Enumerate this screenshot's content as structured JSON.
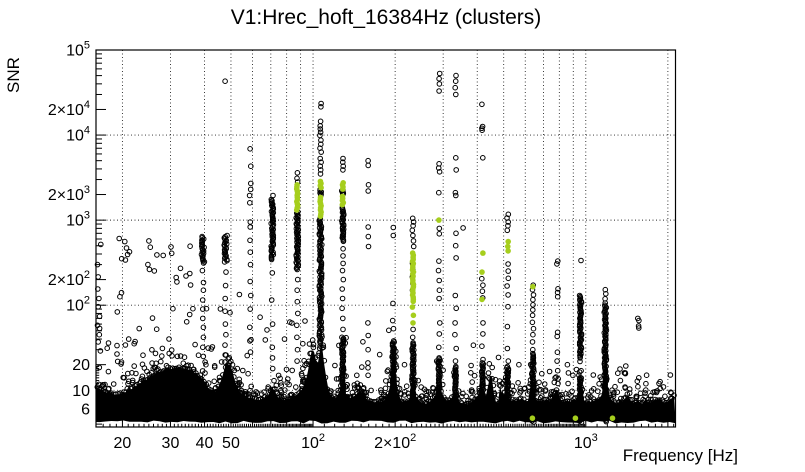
{
  "chart_data": {
    "type": "scatter",
    "title": "V1:Hrec_hoft_16384Hz (clusters)",
    "xlabel": "Frequency [Hz]",
    "ylabel": "SNR",
    "x_scale": "log",
    "y_scale": "log",
    "xlim": [
      16,
      2133
    ],
    "ylim": [
      3.7,
      100000
    ],
    "grid": {
      "x": [
        20,
        30,
        40,
        50,
        60,
        70,
        80,
        90,
        100,
        200,
        300,
        400,
        500,
        600,
        700,
        800,
        900,
        1000,
        2000
      ],
      "y": [
        10,
        100,
        1000,
        10000,
        100000
      ]
    },
    "x_ticks": [
      {
        "value": 20,
        "text": "20",
        "sup": ""
      },
      {
        "value": 30,
        "text": "30",
        "sup": ""
      },
      {
        "value": 40,
        "text": "40",
        "sup": ""
      },
      {
        "value": 50,
        "text": "50",
        "sup": ""
      },
      {
        "value": 100,
        "text": "10",
        "sup": "2"
      },
      {
        "value": 200,
        "text": "2×10",
        "sup": "2"
      },
      {
        "value": 1000,
        "text": "10",
        "sup": "3"
      }
    ],
    "y_ticks": [
      {
        "value": 100000,
        "text": "10",
        "sup": "5"
      },
      {
        "value": 20000,
        "text": "2×10",
        "sup": "4"
      },
      {
        "value": 10000,
        "text": "10",
        "sup": "4"
      },
      {
        "value": 2000,
        "text": "2×10",
        "sup": "3"
      },
      {
        "value": 1000,
        "text": "10",
        "sup": "3"
      },
      {
        "value": 200,
        "text": "2×10",
        "sup": "2"
      },
      {
        "value": 100,
        "text": "10",
        "sup": "2"
      },
      {
        "value": 20,
        "text": "20",
        "sup": ""
      },
      {
        "value": 10,
        "text": "10",
        "sup": ""
      },
      {
        "value": 6,
        "text": "6",
        "sup": ""
      }
    ],
    "marker": {
      "open_color": "#000000",
      "green_color": "#a6ce1d",
      "open_radius": 2.3,
      "green_radius": 2.8
    },
    "noise_floor": [
      [
        16,
        11
      ],
      [
        17.5,
        9.6
      ],
      [
        19,
        9
      ],
      [
        20.5,
        9.4
      ],
      [
        22,
        11
      ],
      [
        24,
        13
      ],
      [
        26,
        15
      ],
      [
        28,
        16.8
      ],
      [
        30,
        18
      ],
      [
        32,
        18.6
      ],
      [
        34,
        18.2
      ],
      [
        36,
        17
      ],
      [
        38,
        15
      ],
      [
        40,
        12.5
      ],
      [
        42,
        10
      ],
      [
        44,
        9.6
      ],
      [
        46,
        13
      ],
      [
        48,
        21
      ],
      [
        50,
        19
      ],
      [
        52,
        12
      ],
      [
        54,
        9.2
      ],
      [
        57,
        8.4
      ],
      [
        60,
        8
      ],
      [
        64,
        7.8
      ],
      [
        68,
        8.4
      ],
      [
        71,
        11
      ],
      [
        74,
        8.6
      ],
      [
        78,
        7.8
      ],
      [
        83,
        8.2
      ],
      [
        88,
        9
      ],
      [
        92,
        11
      ],
      [
        95,
        14
      ],
      [
        98,
        27
      ],
      [
        100,
        33
      ],
      [
        102,
        24
      ],
      [
        104,
        20
      ],
      [
        106,
        29
      ],
      [
        108,
        34
      ],
      [
        110,
        19
      ],
      [
        113,
        11
      ],
      [
        117,
        8.6
      ],
      [
        122,
        8.2
      ],
      [
        126,
        10
      ],
      [
        129,
        16
      ],
      [
        132,
        9
      ],
      [
        137,
        8.2
      ],
      [
        143,
        8.8
      ],
      [
        148,
        10
      ],
      [
        154,
        8.4
      ],
      [
        160,
        7.6
      ],
      [
        168,
        7.2
      ],
      [
        176,
        7.2
      ],
      [
        184,
        7.6
      ],
      [
        191,
        10
      ],
      [
        195,
        21
      ],
      [
        197,
        35
      ],
      [
        200,
        20
      ],
      [
        204,
        9
      ],
      [
        212,
        7.4
      ],
      [
        222,
        7.4
      ],
      [
        229,
        9
      ],
      [
        233,
        25
      ],
      [
        237,
        9
      ],
      [
        247,
        7.2
      ],
      [
        258,
        7
      ],
      [
        270,
        7.6
      ],
      [
        281,
        8.4
      ],
      [
        290,
        11
      ],
      [
        298,
        9
      ],
      [
        308,
        7.4
      ],
      [
        320,
        8
      ],
      [
        332,
        9.4
      ],
      [
        345,
        7.4
      ],
      [
        360,
        6.8
      ],
      [
        378,
        7
      ],
      [
        396,
        8.2
      ],
      [
        410,
        9.4
      ],
      [
        419,
        11
      ],
      [
        430,
        8.2
      ],
      [
        441,
        13
      ],
      [
        450,
        16
      ],
      [
        463,
        7.6
      ],
      [
        477,
        7.2
      ],
      [
        487,
        12
      ],
      [
        498,
        7.4
      ],
      [
        509,
        13
      ],
      [
        519,
        8.6
      ],
      [
        530,
        7.6
      ],
      [
        543,
        7.8
      ],
      [
        557,
        7.4
      ],
      [
        571,
        7.8
      ],
      [
        586,
        8.2
      ],
      [
        601,
        7.2
      ],
      [
        616,
        7.6
      ],
      [
        629,
        12
      ],
      [
        638,
        19
      ],
      [
        648,
        8.2
      ],
      [
        662,
        7.2
      ],
      [
        680,
        7.6
      ],
      [
        702,
        7.3
      ],
      [
        722,
        8
      ],
      [
        744,
        7.2
      ],
      [
        764,
        9
      ],
      [
        787,
        10.6
      ],
      [
        805,
        8
      ],
      [
        828,
        7.2
      ],
      [
        852,
        7.7
      ],
      [
        878,
        7.3
      ],
      [
        903,
        8
      ],
      [
        930,
        7.2
      ],
      [
        957,
        15
      ],
      [
        980,
        8
      ],
      [
        1005,
        7.2
      ],
      [
        1035,
        7.5
      ],
      [
        1062,
        7.1
      ],
      [
        1092,
        7.7
      ],
      [
        1122,
        8
      ],
      [
        1152,
        9
      ],
      [
        1180,
        30
      ],
      [
        1212,
        8.6
      ],
      [
        1252,
        7.4
      ],
      [
        1300,
        7.1
      ],
      [
        1360,
        7.6
      ],
      [
        1425,
        8.4
      ],
      [
        1485,
        7.1
      ],
      [
        1545,
        7.5
      ],
      [
        1605,
        7.1
      ],
      [
        1668,
        7.5
      ],
      [
        1725,
        7.1
      ],
      [
        1792,
        7.7
      ],
      [
        1862,
        8
      ],
      [
        1932,
        7.2
      ],
      [
        2000,
        7.5
      ],
      [
        2065,
        8
      ],
      [
        2130,
        8.8
      ]
    ],
    "clusters": [
      {
        "f": 39.5,
        "w": 1.6,
        "dense": [
          [
            310,
            640
          ]
        ],
        "open": [
          255,
          185,
          150,
          115,
          90,
          70,
          55,
          42,
          32,
          25
        ]
      },
      {
        "f": 47.8,
        "w": 1.6,
        "dense": [
          [
            320,
            660
          ]
        ],
        "open": [
          43000,
          245,
          170,
          120,
          85,
          60,
          45,
          34,
          26
        ]
      },
      {
        "f": 58.8,
        "open": [
          6900,
          4300,
          2700,
          2300,
          1950,
          1600,
          950,
          830,
          580,
          420,
          300,
          190,
          130,
          90,
          55,
          38
        ]
      },
      {
        "f": 70.9,
        "w": 1.1,
        "dense": [
          [
            340,
            1750
          ]
        ],
        "open": [
          1950,
          240,
          115,
          60,
          32,
          24
        ]
      },
      {
        "f": 87.5,
        "w": 1.1,
        "dense": [
          [
            260,
            1250
          ]
        ],
        "green_dense": [
          [
            1300,
            2600
          ]
        ],
        "open": [
          3600,
          3100,
          2800,
          200,
          150,
          110,
          80,
          58,
          42,
          30,
          22
        ]
      },
      {
        "f": 106.5,
        "w": 1.3,
        "dense": [
          [
            35,
            1050
          ],
          [
            1900,
            2300
          ]
        ],
        "green_dense": [
          [
            2350,
            2850
          ],
          [
            1100,
            1850
          ]
        ],
        "open": [
          23500,
          21500,
          14500,
          12800,
          11800,
          10800,
          9900,
          8700,
          7800,
          7000,
          6300,
          5300,
          4800,
          4300,
          3900,
          3500
        ]
      },
      {
        "f": 128.5,
        "w": 1.0,
        "dense": [
          [
            1950,
            2280
          ],
          [
            560,
            1400
          ],
          [
            8,
            42
          ]
        ],
        "green_dense": [
          [
            2300,
            2750
          ],
          [
            1450,
            1900
          ]
        ],
        "open": [
          5300,
          4800,
          4300,
          3900,
          2100,
          460,
          380,
          310,
          255,
          200,
          155,
          120,
          92,
          70,
          52,
          38,
          28
        ]
      },
      {
        "f": 159,
        "open": [
          5000,
          4400,
          2600,
          2200,
          830,
          640,
          490,
          62,
          44,
          30,
          21,
          15
        ]
      },
      {
        "f": 197,
        "w": 1.0,
        "dense": [
          [
            8,
            38
          ]
        ],
        "open": [
          820,
          660,
          105,
          66,
          53,
          30,
          24,
          18
        ]
      },
      {
        "f": 232.5,
        "w": 1.0,
        "dense": [
          [
            7,
            36
          ]
        ],
        "green_dense": [
          [
            105,
            410
          ]
        ],
        "green": [
          95,
          76,
          62
        ],
        "open": [
          1050,
          950,
          860,
          760,
          660,
          570,
          490,
          310,
          260,
          215,
          180,
          150,
          52,
          42,
          34,
          27,
          21
        ]
      },
      {
        "f": 290,
        "w": 1.0,
        "dense": [
          [
            7,
            24
          ]
        ],
        "green": [
          1000
        ],
        "open": [
          53000,
          46000,
          40000,
          33000,
          4600,
          4100,
          3700,
          2100,
          800,
          690,
          330,
          255,
          195,
          150,
          120,
          62,
          46,
          32
        ]
      },
      {
        "f": 333,
        "dense": [
          [
            7,
            19
          ]
        ],
        "open": [
          50000,
          43000,
          36000,
          30000,
          5400,
          3900,
          2100,
          1950,
          700,
          500,
          360,
          130,
          92,
          62,
          45,
          31,
          22,
          15
        ]
      },
      {
        "f": 418,
        "dense": [
          [
            7,
            21
          ]
        ],
        "green": [
          410,
          245,
          117
        ],
        "open": [
          23000,
          12600,
          12000,
          11400,
          5400,
          205,
          172,
          146,
          122,
          62,
          46,
          33,
          23
        ]
      },
      {
        "f": 517,
        "dense": [
          [
            6,
            19
          ]
        ],
        "green": [
          560,
          490,
          435
        ],
        "open": [
          1170,
          1060,
          950,
          860,
          760,
          305,
          252,
          207,
          168,
          132,
          96,
          56,
          31,
          22,
          16,
          11
        ]
      },
      {
        "f": 640,
        "w": 1.1,
        "dense": [
          [
            4.2,
            27
          ]
        ],
        "green": [
          165
        ],
        "open": [
          172,
          152,
          132,
          116,
          101,
          88,
          76,
          63,
          53,
          45,
          37,
          30,
          24
        ]
      },
      {
        "f": 787,
        "open": [
          330,
          306,
          156,
          141,
          126,
          48,
          43,
          28,
          22,
          17,
          12
        ]
      },
      {
        "f": 860,
        "open": [
          20,
          16,
          12
        ]
      },
      {
        "f": 957,
        "w": 1.0,
        "dense": [
          [
            24,
            130
          ],
          [
            4.2,
            14
          ]
        ],
        "open": [
          335,
          17,
          13,
          10
        ]
      },
      {
        "f": 1180,
        "w": 1.2,
        "dense": [
          [
            4.2,
            100
          ]
        ],
        "open": [
          152,
          136,
          119,
          106
        ]
      },
      {
        "f": 1560,
        "open": [
          70,
          66,
          57,
          54,
          14,
          11
        ]
      }
    ],
    "green_floor_points": [
      [
        637,
        4.7
      ],
      [
        916,
        4.7
      ],
      [
        1253,
        4.7
      ]
    ],
    "extra_points": [
      [
        16.2,
        300
      ],
      [
        16.3,
        215
      ],
      [
        16.25,
        155
      ],
      [
        16.4,
        120
      ],
      [
        16.3,
        96
      ],
      [
        16.5,
        74
      ],
      [
        16.2,
        58
      ],
      [
        16.45,
        45
      ],
      [
        16.3,
        37
      ],
      [
        16.6,
        29
      ],
      [
        20.4,
        560
      ],
      [
        20.7,
        470
      ],
      [
        20.9,
        395
      ],
      [
        20.5,
        340
      ],
      [
        25,
        570
      ],
      [
        25.3,
        480
      ],
      [
        24.8,
        300
      ],
      [
        355,
        810
      ],
      [
        1340,
        13
      ],
      [
        1385,
        16
      ],
      [
        1420,
        9
      ],
      [
        1650,
        8.5
      ],
      [
        1855,
        12
      ],
      [
        1875,
        10.5
      ],
      [
        1950,
        8.5
      ],
      [
        2050,
        9.5
      ]
    ],
    "scatter_regions": [
      {
        "f": [
          16.3,
          36
        ],
        "snr": [
          19,
          620
        ],
        "n": 44
      },
      {
        "f": [
          36,
          58
        ],
        "snr": [
          15,
          240
        ],
        "n": 13
      },
      {
        "f": [
          58,
          95
        ],
        "snr": [
          13,
          85
        ],
        "n": 15
      },
      {
        "f": [
          95,
          195
        ],
        "snr": [
          11,
          55
        ],
        "n": 15
      },
      {
        "f": [
          200,
          480
        ],
        "snr": [
          9,
          42
        ],
        "n": 18
      },
      {
        "f": [
          480,
          2100
        ],
        "snr": [
          7.5,
          22
        ],
        "n": 24
      }
    ]
  }
}
